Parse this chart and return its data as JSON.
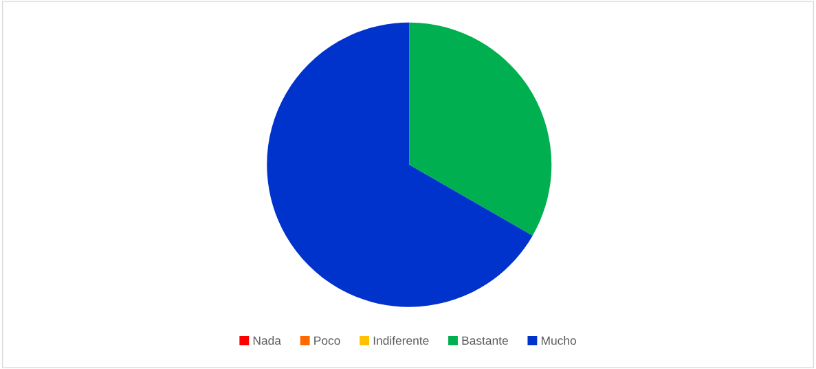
{
  "chart_data": {
    "type": "pie",
    "categories": [
      "Nada",
      "Poco",
      "Indiferente",
      "Bastante",
      "Mucho"
    ],
    "values": [
      0,
      0,
      0,
      33.3,
      66.7
    ],
    "colors": [
      "#ff0000",
      "#ff6a00",
      "#ffc000",
      "#00b050",
      "#0033cc"
    ],
    "legend": "bottom"
  }
}
